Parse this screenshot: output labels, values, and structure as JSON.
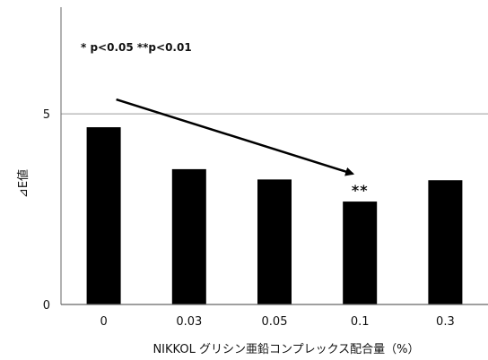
{
  "chart_data": {
    "type": "bar",
    "categories": [
      "0",
      "0.03",
      "0.05",
      "0.1",
      "0.3"
    ],
    "values": [
      4.65,
      3.55,
      3.28,
      2.7,
      3.26
    ],
    "ylim": [
      0,
      7.8
    ],
    "yticks": [
      "0",
      "5"
    ],
    "ytick_values": [
      0,
      5
    ],
    "gridlines": [
      5
    ],
    "xlabel": "NIKKOL グリシン亜鉛コンプレックス配合量（%）",
    "ylabel": "⊿E値",
    "note": "* p<0.05 **p<0.01",
    "annotations": [
      {
        "category": "0.1",
        "text": "**"
      }
    ],
    "trend_arrow": {
      "from": "0",
      "to": "0.1"
    },
    "colors": {
      "bar": "#000000",
      "grid": "#9a9a9a",
      "axis": "#666666",
      "arrow": "#000000"
    }
  }
}
